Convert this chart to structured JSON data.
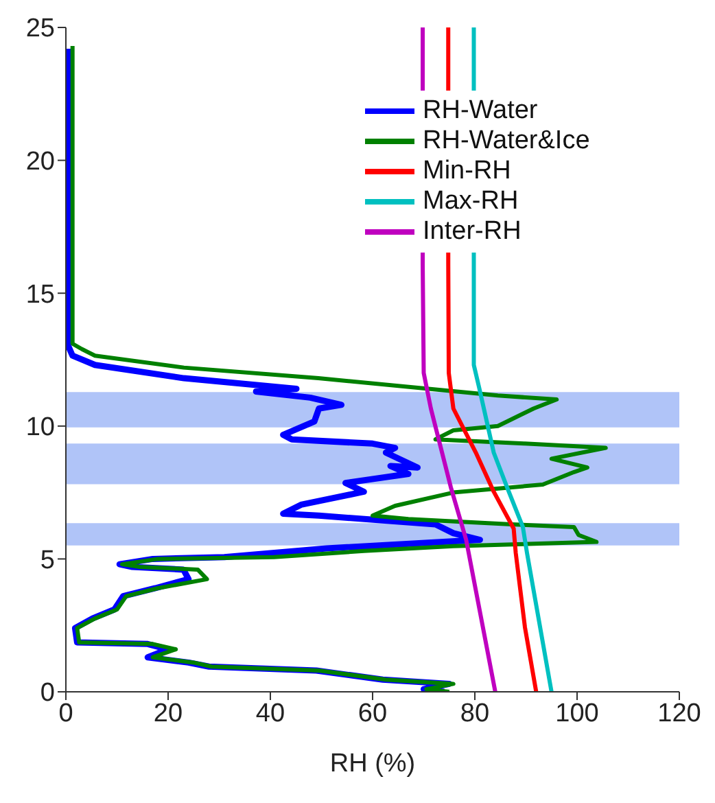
{
  "chart_data": {
    "type": "line",
    "xlabel": "RH (%)",
    "xlim": [
      0,
      120
    ],
    "xticks": [
      0,
      20,
      40,
      60,
      80,
      100,
      120
    ],
    "ylim": [
      0,
      25
    ],
    "yticks": [
      0,
      5,
      10,
      15,
      20,
      25
    ],
    "legend": "top right",
    "marker": "none",
    "grid": false,
    "bands": [
      {
        "axis": "y",
        "from": 9.95,
        "to": 11.28,
        "color": "#b0c4f8"
      },
      {
        "axis": "y",
        "from": 7.81,
        "to": 9.34,
        "color": "#b0c4f8"
      },
      {
        "axis": "y",
        "from": 5.51,
        "to": 6.35,
        "color": "#b0c4f8"
      }
    ],
    "series": [
      {
        "name": "RH-Water",
        "color": "#0000ff",
        "x": [
          74,
          70,
          75,
          62,
          49,
          28,
          24,
          16,
          20,
          16,
          2.2,
          1.8,
          5.2,
          9.5,
          11.2,
          17.5,
          24,
          23,
          13,
          10.5,
          17,
          31,
          51,
          81,
          75.8,
          72.3,
          49.5,
          42.5,
          46,
          58.3,
          54.7,
          67,
          63.5,
          68.8,
          62.6,
          64.4,
          60,
          44.2,
          42.5,
          48.6,
          49.5,
          53.9,
          47.8,
          37.2,
          45.1,
          23.1,
          5.7,
          1.3,
          0.5,
          0.5
        ],
        "values": [
          0,
          0.1,
          0.3,
          0.46,
          0.8,
          0.95,
          1.1,
          1.3,
          1.6,
          1.8,
          1.86,
          2.4,
          2.76,
          3.1,
          3.6,
          3.9,
          4.24,
          4.6,
          4.7,
          4.8,
          5.0,
          5.07,
          5.4,
          5.72,
          5.97,
          6.3,
          6.63,
          6.7,
          7.04,
          7.53,
          7.86,
          8.2,
          8.5,
          8.44,
          9.0,
          9.18,
          9.34,
          9.5,
          9.67,
          10.17,
          10.66,
          10.8,
          11.07,
          11.3,
          11.4,
          11.8,
          12.3,
          12.65,
          13.0,
          24.2
        ]
      },
      {
        "name": "RH-Water&Ice",
        "color": "#008000",
        "x": [
          75,
          70.5,
          75.8,
          62.6,
          49.5,
          28.5,
          25,
          17,
          21.5,
          17,
          2.6,
          2.2,
          5.7,
          10,
          11.8,
          18,
          27.6,
          25.8,
          14.5,
          11,
          18,
          40.7,
          58.3,
          75.8,
          103.8,
          100.3,
          99.4,
          87.2,
          67,
          60,
          64.4,
          75.8,
          93.3,
          99.4,
          102,
          95,
          105.6,
          89.8,
          72.3,
          75.8,
          84.5,
          91.5,
          96,
          84.5,
          49.4,
          23.1,
          5.7,
          3.1,
          1.3,
          1.3
        ],
        "values": [
          0,
          0.1,
          0.3,
          0.46,
          0.8,
          0.95,
          1.1,
          1.3,
          1.6,
          1.8,
          1.86,
          2.4,
          2.76,
          3.1,
          3.6,
          3.9,
          4.24,
          4.6,
          4.7,
          4.8,
          5.0,
          5.07,
          5.3,
          5.48,
          5.64,
          5.9,
          6.2,
          6.3,
          6.5,
          6.63,
          7.0,
          7.5,
          7.8,
          8.27,
          8.44,
          8.77,
          9.18,
          9.34,
          9.5,
          9.84,
          10.0,
          10.66,
          11.0,
          11.15,
          11.8,
          12.2,
          12.65,
          12.9,
          13.1,
          24.3
        ]
      },
      {
        "name": "Min-RH",
        "color": "#ff0000",
        "x": [
          92,
          89.8,
          88,
          87.6,
          83.7,
          80.2,
          75.8,
          74.9,
          74.8,
          null,
          74.8,
          74.8
        ],
        "values": [
          0,
          2.43,
          5.23,
          6.14,
          7.53,
          9.0,
          10.66,
          12.0,
          16.1,
          null,
          23.65,
          25
        ]
      },
      {
        "name": "Max-RH",
        "color": "#00c0c0",
        "x": [
          95,
          90.2,
          89.4,
          86.3,
          83.7,
          80.9,
          79.8,
          79.8,
          null,
          79.8,
          79.8
        ],
        "values": [
          0,
          5.23,
          6.2,
          7.7,
          9.0,
          11.4,
          12.3,
          16.1,
          null,
          23.65,
          25
        ]
      },
      {
        "name": "Inter-RH",
        "color": "#bf00bf",
        "x": [
          84,
          78.3,
          75.3,
          71.4,
          70,
          69.8,
          null,
          69.8,
          69.8
        ],
        "values": [
          0,
          5.72,
          7.7,
          10.66,
          12.0,
          16.1,
          null,
          23.65,
          25
        ]
      }
    ]
  }
}
